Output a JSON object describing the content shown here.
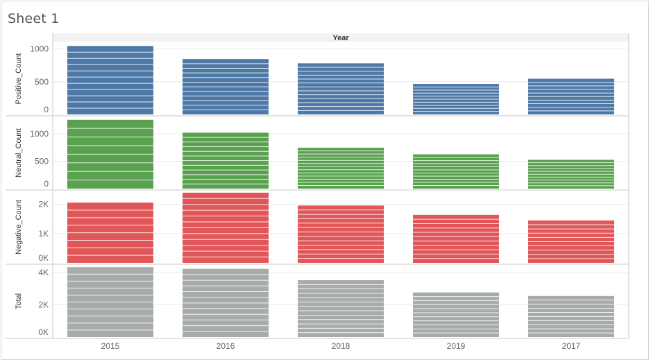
{
  "sheet": {
    "title": "Sheet 1"
  },
  "chart_data": {
    "type": "bar",
    "column_header": "Year",
    "categories": [
      "2015",
      "2016",
      "2018",
      "2019",
      "2017"
    ],
    "series": [
      {
        "name": "Positive_Count",
        "values": [
          1045,
          845,
          780,
          465,
          545
        ],
        "ylim": [
          0,
          1080
        ],
        "ticks": [
          0,
          500,
          1000
        ],
        "tick_labels": [
          "0",
          "500",
          "1000"
        ],
        "color": "#4e79a7",
        "stripes": [
          11,
          12,
          13,
          10,
          10
        ]
      },
      {
        "name": "Neutral_Count",
        "values": [
          1255,
          1020,
          745,
          625,
          525
        ],
        "ylim": [
          0,
          1290
        ],
        "ticks": [
          0,
          500,
          1000
        ],
        "tick_labels": [
          "0",
          "500",
          "1000"
        ],
        "color": "#59a14f",
        "stripes": [
          8,
          12,
          13,
          11,
          10
        ]
      },
      {
        "name": "Negative_Count",
        "values": [
          2060,
          2400,
          1960,
          1640,
          1450
        ],
        "ylim": [
          0,
          2420
        ],
        "ticks": [
          0,
          1000,
          2000
        ],
        "tick_labels": [
          "0K",
          "1K",
          "2K"
        ],
        "color": "#e15759",
        "stripes": [
          8,
          12,
          13,
          11,
          10
        ]
      },
      {
        "name": "Total",
        "values": [
          4330,
          4220,
          3520,
          2760,
          2540
        ],
        "ylim": [
          0,
          4380
        ],
        "ticks": [
          0,
          2000,
          4000
        ],
        "tick_labels": [
          "0K",
          "2K",
          "4K"
        ],
        "color": "#a8abac",
        "stripes": [
          10,
          12,
          13,
          11,
          10
        ]
      }
    ],
    "grid": true,
    "legend": "none"
  }
}
